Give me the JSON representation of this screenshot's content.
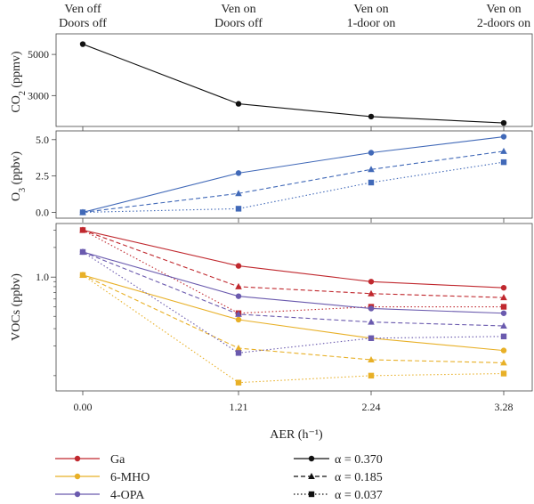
{
  "condition_labels": [
    {
      "line1": "Ven off",
      "line2": "Doors off"
    },
    {
      "line1": "Ven on",
      "line2": "Doors off"
    },
    {
      "line1": "Ven on",
      "line2": "1-door on"
    },
    {
      "line1": "Ven on",
      "line2": "2-doors on"
    }
  ],
  "xlabel": "AER (h⁻¹)",
  "colors": {
    "Ga": "#c0282e",
    "6-MHO": "#e8b027",
    "4-OPA": "#6a5aae",
    "O3": "#4169b8",
    "CO2": "#111111"
  },
  "legend": {
    "species": [
      {
        "label": "Ga",
        "color": "#c0282e"
      },
      {
        "label": "6-MHO",
        "color": "#e8b027"
      },
      {
        "label": "4-OPA",
        "color": "#6a5aae"
      }
    ],
    "alpha": [
      {
        "label": "α = 0.370",
        "dash": "solid",
        "marker": "circle"
      },
      {
        "label": "α = 0.185",
        "dash": "dashed",
        "marker": "triangle"
      },
      {
        "label": "α = 0.037",
        "dash": "dotted",
        "marker": "square"
      }
    ]
  },
  "chart_data": [
    {
      "type": "line",
      "ylabel": "CO2 (ppmv)",
      "x": [
        0.0,
        1.21,
        2.24,
        3.28
      ],
      "xticks": [
        "0.00",
        "1.21",
        "2.24",
        "3.28"
      ],
      "yticks": [
        3000,
        5000
      ],
      "ylim": [
        1500,
        6000
      ],
      "series": [
        {
          "values": [
            5500,
            2600,
            1980,
            1670
          ]
        }
      ]
    },
    {
      "type": "line",
      "ylabel": "O3 (ppbv)",
      "x": [
        0.0,
        1.21,
        2.24,
        3.28
      ],
      "yticks": [
        "0.0",
        "2.5",
        "5.0"
      ],
      "ylim": [
        -0.4,
        5.6
      ],
      "series": [
        {
          "name": "α = 0.370",
          "values": [
            0.0,
            2.7,
            4.1,
            5.2
          ]
        },
        {
          "name": "α = 0.185",
          "values": [
            0.0,
            1.3,
            2.95,
            4.2
          ]
        },
        {
          "name": "α = 0.037",
          "values": [
            0.0,
            0.25,
            2.05,
            3.45
          ]
        }
      ]
    },
    {
      "type": "line",
      "ylabel": "VOCs (ppbv)",
      "log_scale": true,
      "x": [
        0.0,
        1.21,
        2.24,
        3.28
      ],
      "yticks": [
        "1.0"
      ],
      "series": [
        {
          "name": "Ga α = 0.370",
          "values": [
            3.0,
            1.3,
            0.9,
            0.78
          ]
        },
        {
          "name": "Ga α = 0.185",
          "values": [
            3.0,
            0.8,
            0.68,
            0.62
          ]
        },
        {
          "name": "Ga α = 0.037",
          "values": [
            3.0,
            0.43,
            0.5,
            0.5
          ]
        },
        {
          "name": "6-MHO α = 0.370",
          "values": [
            1.05,
            0.37,
            0.24,
            0.18
          ]
        },
        {
          "name": "6-MHO α = 0.185",
          "values": [
            1.05,
            0.19,
            0.145,
            0.135
          ]
        },
        {
          "name": "6-MHO α = 0.037",
          "values": [
            1.05,
            0.085,
            0.1,
            0.105
          ]
        },
        {
          "name": "4-OPA α = 0.370",
          "values": [
            1.8,
            0.64,
            0.48,
            0.43
          ]
        },
        {
          "name": "4-OPA α = 0.185",
          "values": [
            1.8,
            0.42,
            0.35,
            0.32
          ]
        },
        {
          "name": "4-OPA α = 0.037",
          "values": [
            1.8,
            0.17,
            0.24,
            0.25
          ]
        }
      ]
    }
  ]
}
